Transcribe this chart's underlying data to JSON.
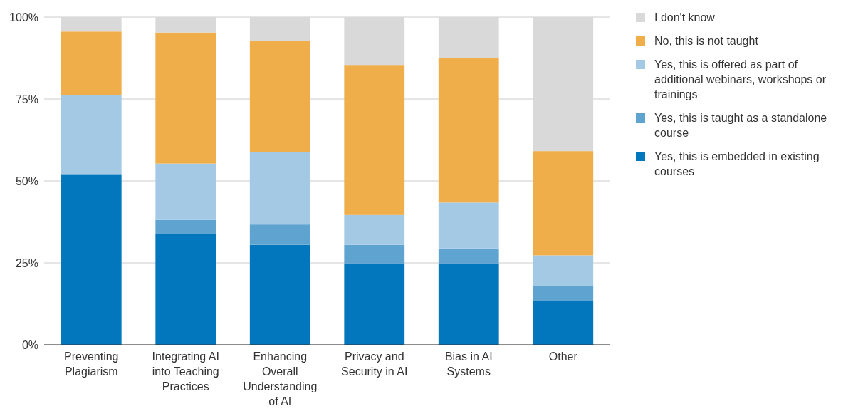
{
  "chart_data": {
    "type": "bar",
    "stacked": true,
    "categories": [
      "Preventing Plagiarism",
      "Integrating AI into Teaching Practices",
      "Enhancing Overall Understanding of AI",
      "Privacy and Security in AI",
      "Bias in AI Systems",
      "Other"
    ],
    "series": [
      {
        "name": "Yes, this is embedded in existing courses",
        "color": "#0277bd",
        "values": [
          52.1,
          33.7,
          30.5,
          24.8,
          24.8,
          13.3
        ]
      },
      {
        "name": "Yes, this is taught as a standalone course",
        "color": "#5fa3d0",
        "values": [
          0,
          4.4,
          6.2,
          5.7,
          4.6,
          4.7
        ]
      },
      {
        "name": "Yes, this is offered as part of additional webinars, workshops or trainings",
        "color": "#a3c9e5",
        "values": [
          24,
          17.2,
          22,
          9.1,
          14,
          9.3
        ]
      },
      {
        "name": "No, this is not taught",
        "color": "#f0ae4b",
        "values": [
          19.5,
          40,
          34.1,
          45.8,
          44.1,
          31.8
        ]
      },
      {
        "name": "I don't know",
        "color": "#d9d9d9",
        "values": [
          4.4,
          4.7,
          7.2,
          14.6,
          12.5,
          40.9
        ]
      }
    ],
    "ylim": [
      0,
      100
    ],
    "yticks": [
      {
        "value": 0,
        "label": "0%"
      },
      {
        "value": 25,
        "label": "25%"
      },
      {
        "value": 50,
        "label": "50%"
      },
      {
        "value": 75,
        "label": "75%"
      },
      {
        "value": 100,
        "label": "100%"
      }
    ],
    "grid": "y",
    "legend": "top right"
  }
}
